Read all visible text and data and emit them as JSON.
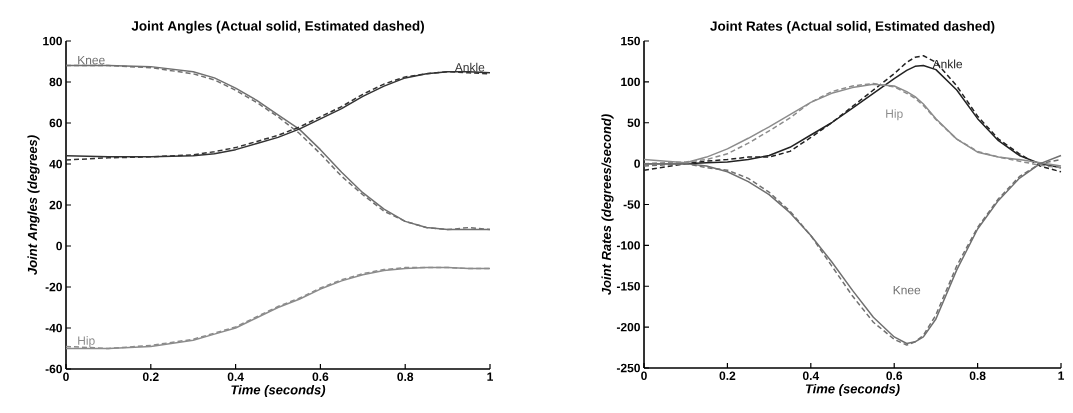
{
  "chart_data": [
    {
      "type": "line",
      "title": "Joint Angles (Actual solid, Estimated dashed)",
      "xlabel": "Time (seconds)",
      "ylabel": "Joint Angles (degrees)",
      "x": [
        0,
        0.1,
        0.2,
        0.3,
        0.35,
        0.4,
        0.45,
        0.5,
        0.55,
        0.6,
        0.65,
        0.7,
        0.75,
        0.8,
        0.85,
        0.9,
        0.95,
        1
      ],
      "xlim": [
        0,
        1
      ],
      "ylim": [
        -60,
        100
      ],
      "xticks": [
        0,
        0.2,
        0.4,
        0.6,
        0.8,
        1
      ],
      "yticks": [
        -60,
        -40,
        -20,
        0,
        20,
        40,
        60,
        80,
        100
      ],
      "series": [
        {
          "name": "Knee",
          "color": "#707070",
          "line_style": "solid",
          "values": [
            88,
            88,
            87.5,
            85,
            82,
            77,
            71,
            64,
            57,
            47,
            36,
            26,
            18,
            12,
            9,
            8,
            8,
            8
          ]
        },
        {
          "color": "#707070",
          "line_style": "dashed",
          "values": [
            88,
            88,
            87,
            84,
            81,
            76,
            70,
            63,
            55,
            45,
            34,
            25,
            17,
            12,
            9,
            8,
            9,
            8
          ]
        },
        {
          "name": "Ankle",
          "color": "#333333",
          "line_style": "solid",
          "values": [
            44,
            43.5,
            43.5,
            44,
            45,
            47,
            50,
            53,
            57,
            62,
            67,
            73,
            78,
            82,
            84,
            85,
            85,
            84.5
          ]
        },
        {
          "color": "#333333",
          "line_style": "dashed",
          "values": [
            42,
            43,
            43.5,
            44.5,
            46,
            48,
            51,
            54,
            58,
            63,
            68,
            74,
            79,
            82.5,
            84,
            85,
            84.5,
            84
          ]
        },
        {
          "name": "Hip",
          "color": "#8c8c8c",
          "line_style": "solid",
          "values": [
            -50,
            -50,
            -49,
            -46,
            -43,
            -40,
            -35,
            -30,
            -26,
            -21,
            -17,
            -14,
            -12,
            -11,
            -10.5,
            -10.5,
            -11,
            -11
          ]
        },
        {
          "color": "#8c8c8c",
          "line_style": "dashed",
          "values": [
            -49,
            -50,
            -48.5,
            -45.5,
            -42.5,
            -39.5,
            -34.5,
            -29.5,
            -25.5,
            -20.5,
            -16.5,
            -13.5,
            -11.5,
            -10.5,
            -10.5,
            -10.5,
            -11,
            -11
          ]
        }
      ]
    },
    {
      "type": "line",
      "title": "Joint Rates (Actual solid, Estimated dashed)",
      "xlabel": "Time (seconds)",
      "ylabel": "Joint Rates (degrees/second)",
      "x": [
        0,
        0.1,
        0.15,
        0.2,
        0.25,
        0.3,
        0.35,
        0.4,
        0.45,
        0.5,
        0.55,
        0.6,
        0.63,
        0.65,
        0.67,
        0.7,
        0.75,
        0.8,
        0.85,
        0.9,
        0.95,
        1
      ],
      "xlim": [
        0,
        1
      ],
      "ylim": [
        -250,
        150
      ],
      "xticks": [
        0,
        0.2,
        0.4,
        0.6,
        0.8,
        1
      ],
      "yticks": [
        -250,
        -200,
        -150,
        -100,
        -50,
        0,
        50,
        100,
        150
      ],
      "series": [
        {
          "name": "Ankle",
          "color": "#222222",
          "line_style": "solid",
          "values": [
            0,
            0,
            1,
            2,
            5,
            10,
            20,
            35,
            50,
            68,
            86,
            104,
            114,
            119,
            120,
            115,
            90,
            55,
            28,
            10,
            0,
            -5
          ]
        },
        {
          "color": "#222222",
          "line_style": "dashed",
          "values": [
            -8,
            0,
            3,
            5,
            8,
            8,
            15,
            32,
            50,
            70,
            90,
            110,
            124,
            130,
            132,
            124,
            95,
            58,
            30,
            12,
            -3,
            -10
          ]
        },
        {
          "name": "Hip",
          "color": "#8c8c8c",
          "line_style": "solid",
          "values": [
            5,
            1,
            8,
            18,
            31,
            45,
            60,
            75,
            86,
            93,
            97,
            95,
            88,
            82,
            73,
            55,
            30,
            14,
            8,
            5,
            1,
            -3
          ]
        },
        {
          "color": "#8c8c8c",
          "line_style": "dashed",
          "values": [
            0,
            2,
            5,
            12,
            25,
            40,
            56,
            75,
            88,
            95,
            98,
            94,
            86,
            80,
            71,
            54,
            30,
            15,
            8,
            3,
            -2,
            -5
          ]
        },
        {
          "name": "Knee",
          "color": "#707070",
          "line_style": "solid",
          "values": [
            0,
            0,
            -3,
            -10,
            -22,
            -38,
            -60,
            -88,
            -120,
            -155,
            -188,
            -212,
            -220,
            -218,
            -212,
            -190,
            -130,
            -80,
            -45,
            -18,
            0,
            10
          ]
        },
        {
          "color": "#707070",
          "line_style": "dashed",
          "values": [
            -3,
            0,
            -5,
            -8,
            -18,
            -35,
            -58,
            -88,
            -125,
            -162,
            -194,
            -215,
            -222,
            -218,
            -210,
            -185,
            -125,
            -78,
            -43,
            -16,
            0,
            5
          ]
        }
      ]
    }
  ]
}
